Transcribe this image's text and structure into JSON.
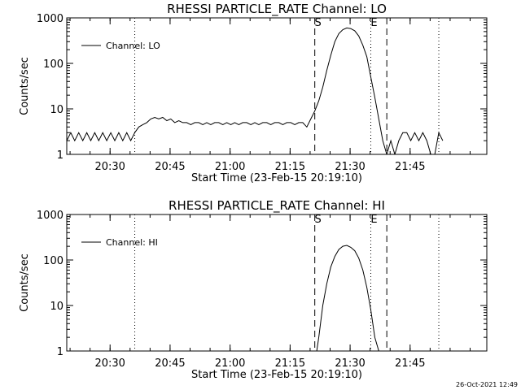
{
  "chart_data": [
    {
      "type": "line",
      "title": "RHESSI PARTICLE_RATE Channel: LO",
      "xlabel": "Start Time (23-Feb-15 20:19:10)",
      "ylabel": "Counts/sec",
      "x_units": "minutes after 20:19:10",
      "xlim": [
        0,
        105
      ],
      "ylim": [
        1,
        1000
      ],
      "y_scale": "log",
      "xtick_labels": [
        "20:30",
        "20:45",
        "21:00",
        "21:15",
        "21:30",
        "21:45"
      ],
      "xtick_values": [
        10.83,
        25.83,
        40.83,
        55.83,
        70.83,
        85.83
      ],
      "ytick_labels": [
        "1",
        "10",
        "100",
        "1000"
      ],
      "ytick_values": [
        1,
        10,
        100,
        1000
      ],
      "markers": [
        {
          "label": "S",
          "x": 62.0,
          "style": "dashed"
        },
        {
          "label": "E",
          "x": 76.0,
          "style": "dotted"
        },
        {
          "label": "",
          "x": 80.0,
          "style": "dashed"
        },
        {
          "label": "",
          "x": 17.0,
          "style": "dotted"
        },
        {
          "label": "",
          "x": 93.0,
          "style": "dotted"
        }
      ],
      "legend": {
        "position": "top-left",
        "entries": [
          "Channel: LO"
        ]
      },
      "series": [
        {
          "name": "Channel: LO",
          "x": [
            0,
            1,
            2,
            3,
            4,
            5,
            6,
            7,
            8,
            9,
            10,
            11,
            12,
            13,
            14,
            15,
            16,
            17,
            18,
            19,
            20,
            21,
            22,
            23,
            24,
            25,
            26,
            27,
            28,
            29,
            30,
            31,
            32,
            33,
            34,
            35,
            36,
            37,
            38,
            39,
            40,
            41,
            42,
            43,
            44,
            45,
            46,
            47,
            48,
            49,
            50,
            51,
            52,
            53,
            54,
            55,
            56,
            57,
            58,
            59,
            60,
            61,
            62,
            63,
            64,
            65,
            66,
            67,
            68,
            69,
            70,
            71,
            72,
            73,
            74,
            75,
            76,
            77,
            78,
            79,
            80,
            81,
            82,
            83,
            84,
            85,
            86,
            87,
            88,
            89,
            90,
            91,
            92,
            93,
            94
          ],
          "y": [
            2,
            3,
            2,
            3,
            2,
            3,
            2,
            3,
            2,
            3,
            2,
            3,
            2,
            3,
            2,
            3,
            2,
            3,
            4,
            4.5,
            5,
            6,
            6.5,
            6,
            6.5,
            5.5,
            6,
            5,
            5.5,
            5,
            5,
            4.5,
            5,
            5,
            4.5,
            5,
            4.5,
            5,
            5,
            4.5,
            5,
            4.5,
            5,
            4.5,
            5,
            5,
            4.5,
            5,
            4.5,
            5,
            5,
            4.5,
            5,
            5,
            4.5,
            5,
            5,
            4.5,
            5,
            5,
            4,
            6,
            9,
            15,
            30,
            70,
            150,
            300,
            450,
            550,
            600,
            580,
            520,
            400,
            250,
            140,
            50,
            18,
            6,
            2,
            1,
            2,
            1,
            2,
            3,
            3,
            2,
            3,
            2,
            3,
            2,
            1,
            1,
            3,
            2
          ]
        }
      ]
    },
    {
      "type": "line",
      "title": "RHESSI PARTICLE_RATE Channel: HI",
      "xlabel": "Start Time (23-Feb-15 20:19:10)",
      "ylabel": "Counts/sec",
      "x_units": "minutes after 20:19:10",
      "xlim": [
        0,
        105
      ],
      "ylim": [
        1,
        1000
      ],
      "y_scale": "log",
      "xtick_labels": [
        "20:30",
        "20:45",
        "21:00",
        "21:15",
        "21:30",
        "21:45"
      ],
      "xtick_values": [
        10.83,
        25.83,
        40.83,
        55.83,
        70.83,
        85.83
      ],
      "ytick_labels": [
        "1",
        "10",
        "100",
        "1000"
      ],
      "ytick_values": [
        1,
        10,
        100,
        1000
      ],
      "markers": [
        {
          "label": "S",
          "x": 62.0,
          "style": "dashed"
        },
        {
          "label": "E",
          "x": 76.0,
          "style": "dotted"
        },
        {
          "label": "",
          "x": 80.0,
          "style": "dashed"
        },
        {
          "label": "",
          "x": 17.0,
          "style": "dotted"
        },
        {
          "label": "",
          "x": 93.0,
          "style": "dotted"
        }
      ],
      "legend": {
        "position": "top-left",
        "entries": [
          "Channel: HI"
        ]
      },
      "series": [
        {
          "name": "Channel: HI",
          "x": [
            62.5,
            63,
            64,
            65,
            66,
            67,
            68,
            69,
            70,
            71,
            72,
            73,
            74,
            75,
            76,
            77,
            78
          ],
          "y": [
            1,
            2,
            10,
            30,
            70,
            120,
            170,
            200,
            210,
            190,
            160,
            110,
            60,
            25,
            8,
            2,
            1
          ]
        }
      ]
    }
  ],
  "footer": {
    "timestamp": "26-Oct-2021 12:49"
  }
}
